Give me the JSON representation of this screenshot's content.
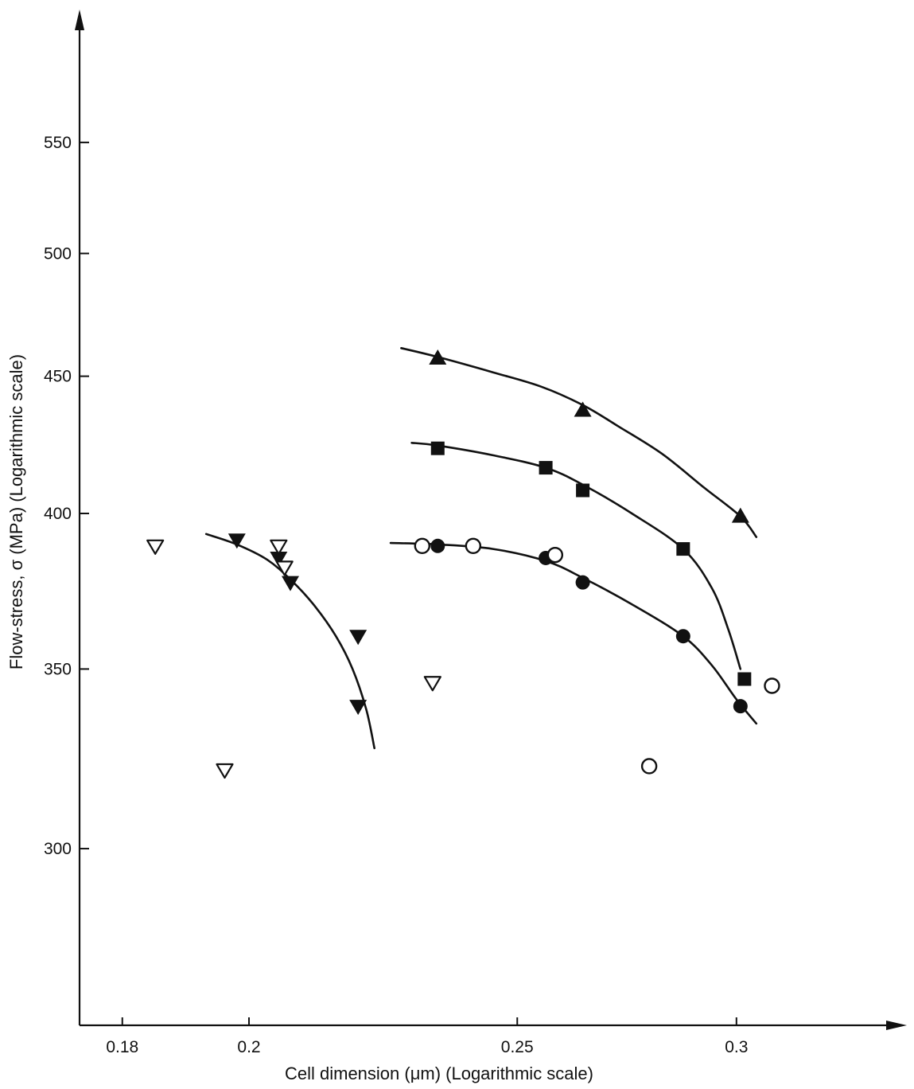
{
  "chart_data": {
    "type": "scatter",
    "xlabel": "Cell dimension (μm) (Logarithmic scale)",
    "ylabel": "Flow-stress, σ (MPa) (Logarithmic scale)",
    "x_scale": "log",
    "y_scale": "log",
    "xlim": [
      0.175,
      0.32
    ],
    "ylim": [
      265,
      590
    ],
    "x_ticks": [
      0.18,
      0.2,
      0.25,
      0.3
    ],
    "x_tick_labels": [
      "0.18",
      "0.2",
      "0.25",
      "0.3"
    ],
    "y_ticks": [
      300,
      350,
      400,
      450,
      500,
      550
    ],
    "y_tick_labels": [
      "300",
      "350",
      "400",
      "450",
      "500",
      "550"
    ],
    "grid": false,
    "legend": "none",
    "series": [
      {
        "marker": "filled-triangle-up",
        "color": "#111111",
        "points": [
          [
            0.234,
            457
          ],
          [
            0.264,
            437
          ],
          [
            0.301,
            399
          ]
        ],
        "curve": [
          [
            0.227,
            461
          ],
          [
            0.234,
            457.5
          ],
          [
            0.245,
            451.5
          ],
          [
            0.255,
            446
          ],
          [
            0.264,
            439
          ],
          [
            0.272,
            431
          ],
          [
            0.282,
            421
          ],
          [
            0.292,
            409
          ],
          [
            0.301,
            399
          ],
          [
            0.305,
            392
          ]
        ]
      },
      {
        "marker": "filled-square",
        "color": "#111111",
        "points": [
          [
            0.234,
            423
          ],
          [
            0.256,
            416
          ],
          [
            0.264,
            408
          ],
          [
            0.287,
            388
          ],
          [
            0.302,
            347
          ]
        ],
        "curve": [
          [
            0.229,
            425
          ],
          [
            0.234,
            424
          ],
          [
            0.245,
            420.5
          ],
          [
            0.256,
            416
          ],
          [
            0.264,
            410
          ],
          [
            0.275,
            400
          ],
          [
            0.287,
            388
          ],
          [
            0.294,
            375
          ],
          [
            0.298,
            362
          ],
          [
            0.301,
            350
          ]
        ]
      },
      {
        "marker": "filled-circle",
        "color": "#111111",
        "points": [
          [
            0.234,
            389
          ],
          [
            0.256,
            385
          ],
          [
            0.264,
            377
          ],
          [
            0.287,
            360
          ],
          [
            0.301,
            339
          ]
        ],
        "curve": [
          [
            0.225,
            390
          ],
          [
            0.234,
            389.5
          ],
          [
            0.245,
            388
          ],
          [
            0.256,
            384
          ],
          [
            0.264,
            378.5
          ],
          [
            0.275,
            370
          ],
          [
            0.287,
            360
          ],
          [
            0.294,
            351
          ],
          [
            0.3,
            341
          ],
          [
            0.305,
            334
          ]
        ]
      },
      {
        "marker": "open-circle",
        "color": "#111111",
        "points": [
          [
            0.231,
            389
          ],
          [
            0.241,
            389
          ],
          [
            0.258,
            386
          ],
          [
            0.279,
            322
          ],
          [
            0.309,
            345
          ]
        ]
      },
      {
        "marker": "filled-triangle-down",
        "color": "#111111",
        "points": [
          [
            0.198,
            391
          ],
          [
            0.205,
            385
          ],
          [
            0.207,
            377
          ],
          [
            0.219,
            360
          ],
          [
            0.219,
            339
          ]
        ],
        "curve": [
          [
            0.193,
            393
          ],
          [
            0.198,
            389.5
          ],
          [
            0.203,
            384.5
          ],
          [
            0.207,
            378
          ],
          [
            0.211,
            370
          ],
          [
            0.215,
            360
          ],
          [
            0.218,
            350
          ],
          [
            0.2205,
            338
          ],
          [
            0.222,
            327
          ]
        ]
      },
      {
        "marker": "open-triangle-down",
        "color": "#111111",
        "points": [
          [
            0.185,
            389
          ],
          [
            0.205,
            389
          ],
          [
            0.206,
            382
          ],
          [
            0.196,
            321
          ],
          [
            0.233,
            346
          ]
        ]
      }
    ]
  }
}
